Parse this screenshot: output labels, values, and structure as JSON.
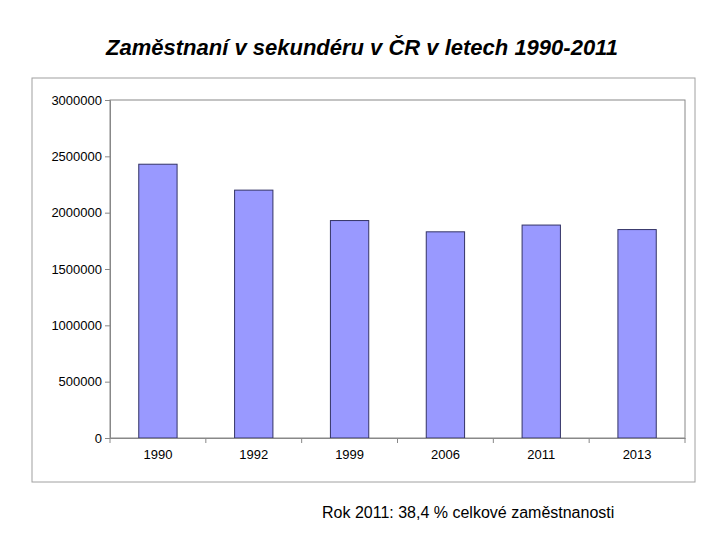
{
  "chart_data": {
    "type": "bar",
    "title": "Zaměstnaní v sekundéru v ČR v letech 1990-2011",
    "categories": [
      "1990",
      "1992",
      "1999",
      "2006",
      "2011",
      "2013"
    ],
    "values": [
      2430000,
      2200000,
      1930000,
      1830000,
      1890000,
      1850000
    ],
    "color": "#9999ff",
    "ylim": [
      0,
      3000000
    ],
    "yticks": [
      0,
      500000,
      1000000,
      1500000,
      2000000,
      2500000,
      3000000
    ],
    "grid": false,
    "annotation": "Rok 2011: 38,4 % celkové zaměstnanosti"
  }
}
